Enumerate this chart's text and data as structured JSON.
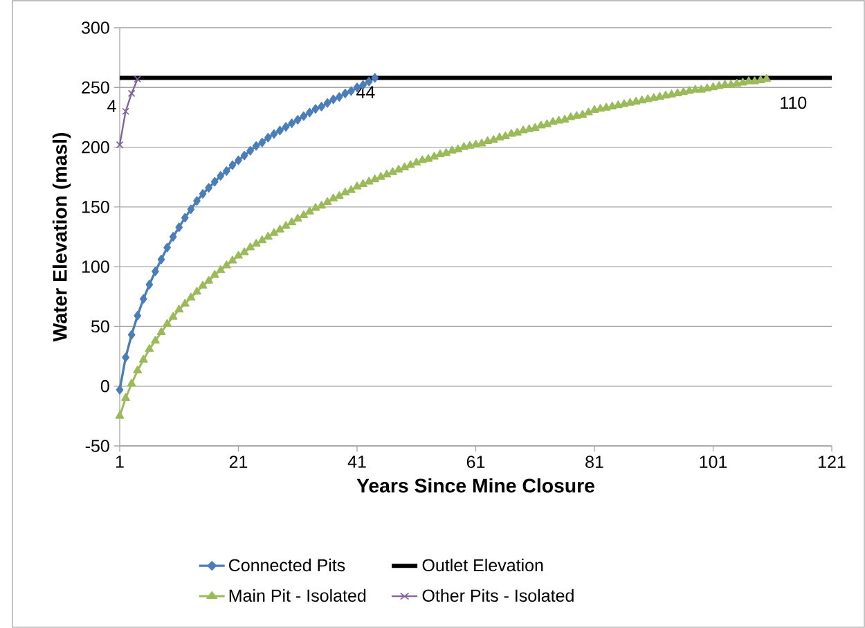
{
  "chart_data": {
    "type": "line",
    "xlabel": "Years Since Mine Closure",
    "ylabel": "Water Elevation (masl)",
    "xlim": [
      1,
      121
    ],
    "xticks": [
      1,
      21,
      41,
      61,
      81,
      101,
      121
    ],
    "ylim": [
      -50,
      300
    ],
    "yticks": [
      -50,
      0,
      50,
      100,
      150,
      200,
      250,
      300
    ],
    "grid": "y",
    "legend": "bottom",
    "series": [
      {
        "name": "Connected Pits",
        "color": "#4a7ebb",
        "marker": "diamond",
        "x": [
          1,
          2,
          3,
          4,
          5,
          6,
          7,
          8,
          9,
          10,
          11,
          12,
          13,
          14,
          15,
          16,
          17,
          18,
          19,
          20,
          21,
          22,
          23,
          24,
          25,
          26,
          27,
          28,
          29,
          30,
          31,
          32,
          33,
          34,
          35,
          36,
          37,
          38,
          39,
          40,
          41,
          42,
          43,
          44
        ],
        "values": [
          -3,
          24,
          43,
          59,
          73,
          85,
          96,
          106,
          116,
          125,
          133,
          141,
          148,
          155,
          161,
          166,
          171,
          176,
          180,
          185,
          189,
          193,
          197,
          201,
          204,
          208,
          211,
          214,
          217,
          220,
          223,
          226,
          229,
          232,
          234,
          237,
          240,
          242,
          245,
          247,
          250,
          252,
          255,
          258
        ]
      },
      {
        "name": "Outlet Elevation",
        "color": "#000000",
        "marker": "none",
        "x": [
          1,
          121
        ],
        "values": [
          258,
          258
        ]
      },
      {
        "name": "Main Pit - Isolated",
        "color": "#9bbb59",
        "marker": "triangle",
        "x": [
          1,
          2,
          3,
          4,
          5,
          6,
          7,
          8,
          9,
          10,
          11,
          12,
          13,
          14,
          15,
          16,
          17,
          18,
          19,
          20,
          21,
          22,
          23,
          24,
          25,
          26,
          27,
          28,
          29,
          30,
          31,
          32,
          33,
          34,
          35,
          36,
          37,
          38,
          39,
          40,
          41,
          42,
          43,
          44,
          45,
          46,
          47,
          48,
          49,
          50,
          51,
          52,
          53,
          54,
          55,
          56,
          57,
          58,
          59,
          60,
          61,
          62,
          63,
          64,
          65,
          66,
          67,
          68,
          69,
          70,
          71,
          72,
          73,
          74,
          75,
          76,
          77,
          78,
          79,
          80,
          81,
          82,
          83,
          84,
          85,
          86,
          87,
          88,
          89,
          90,
          91,
          92,
          93,
          94,
          95,
          96,
          97,
          98,
          99,
          100,
          101,
          102,
          103,
          104,
          105,
          106,
          107,
          108,
          109,
          110
        ],
        "values": [
          -25,
          -10,
          2,
          13,
          22,
          31,
          38,
          45,
          52,
          58,
          64,
          69,
          74,
          79,
          84,
          88,
          93,
          97,
          101,
          105,
          109,
          112,
          116,
          119,
          122,
          125,
          128,
          131,
          134,
          137,
          140,
          143,
          146,
          149,
          151,
          154,
          157,
          159,
          162,
          164,
          167,
          169,
          171,
          173,
          175,
          177,
          179,
          181,
          183,
          185,
          187,
          189,
          190,
          192,
          194,
          195,
          197,
          198,
          200,
          201,
          202,
          203,
          205,
          206,
          208,
          209,
          211,
          212,
          214,
          215,
          216,
          218,
          219,
          221,
          222,
          223,
          225,
          226,
          227,
          229,
          231,
          232,
          233,
          234,
          235,
          236,
          237,
          238,
          239,
          240,
          241,
          242,
          243,
          244,
          245,
          246,
          247,
          248,
          248,
          249,
          250,
          251,
          252,
          252,
          253,
          254,
          255,
          255,
          256,
          257
        ]
      },
      {
        "name": "Other Pits - Isolated",
        "color": "#7f60a0",
        "marker": "cross",
        "x": [
          1,
          2,
          3,
          4
        ],
        "values": [
          202,
          230,
          245,
          257
        ]
      }
    ],
    "annotations": [
      {
        "text": "4",
        "x": 4,
        "y": 257
      },
      {
        "text": "44",
        "x": 44,
        "y": 258
      },
      {
        "text": "110",
        "x": 110,
        "y": 257
      }
    ]
  }
}
